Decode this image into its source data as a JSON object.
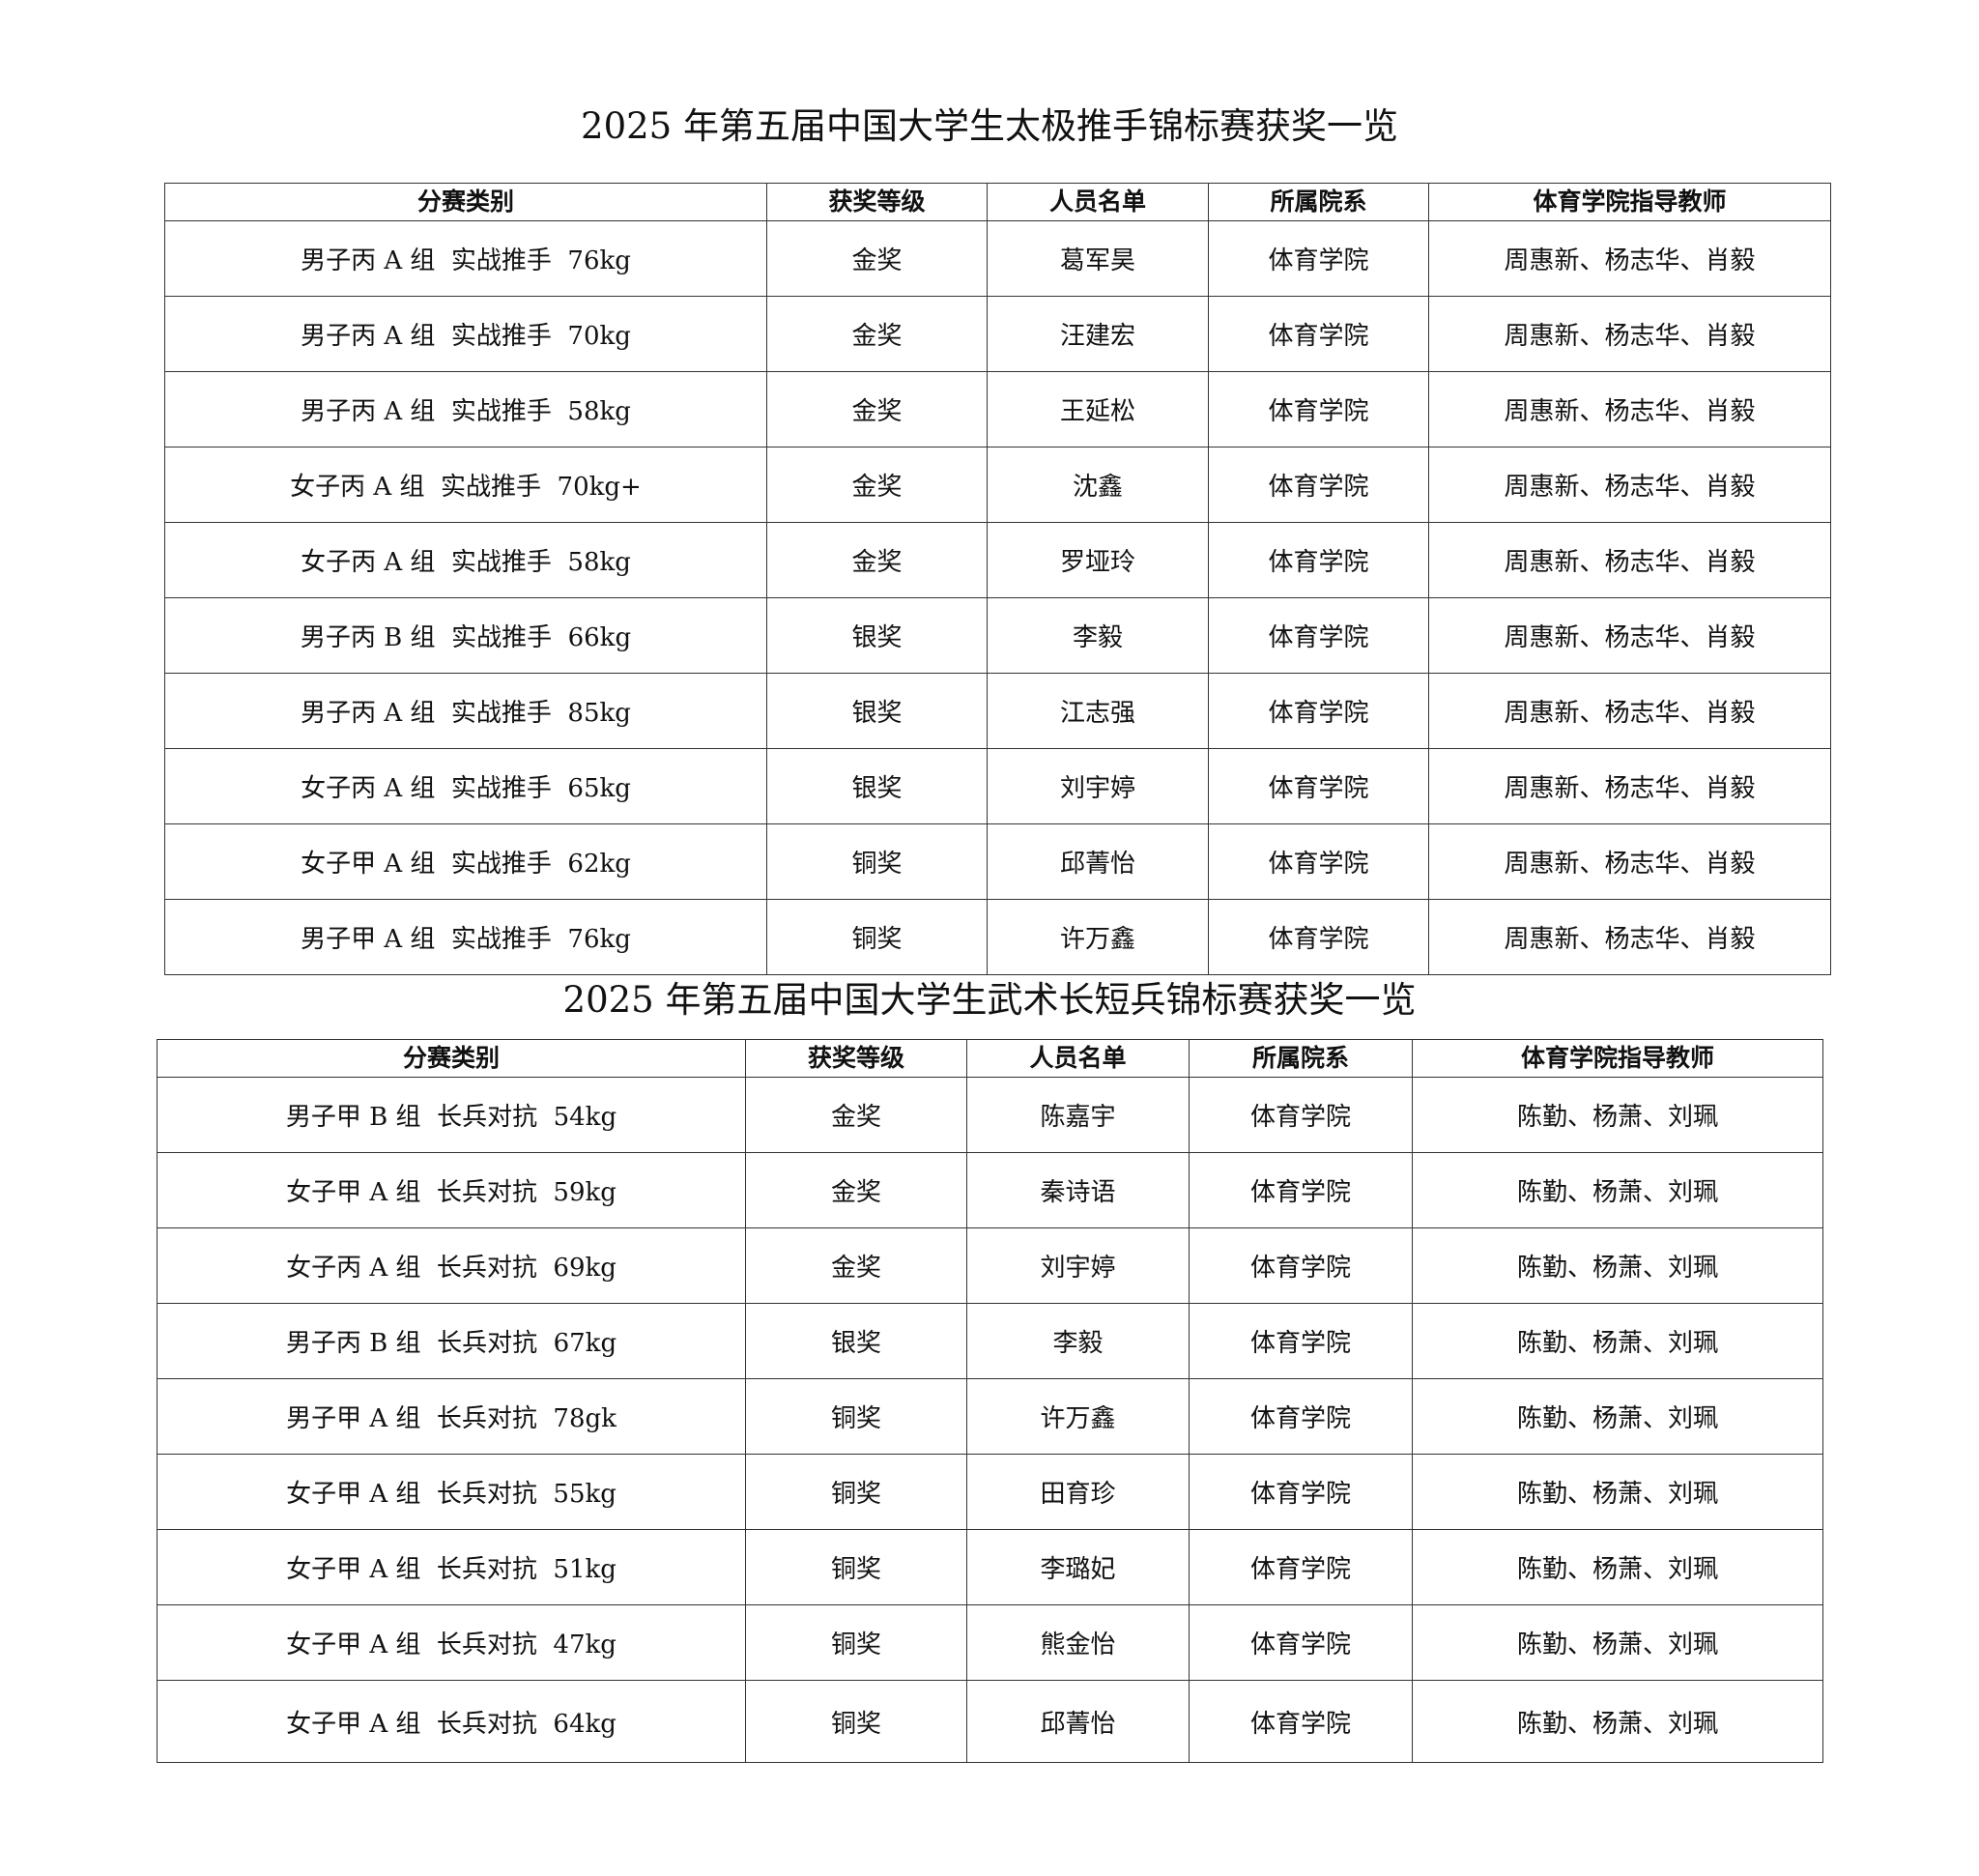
{
  "tables": [
    {
      "title": "2025 年第五届中国大学生太极推手锦标赛获奖一览",
      "headers": [
        "分赛类别",
        "获奖等级",
        "人员名单",
        "所属院系",
        "体育学院指导教师"
      ],
      "rows": [
        [
          "男子丙 A 组  实战推手  76kg",
          "金奖",
          "葛军昊",
          "体育学院",
          "周惠新、杨志华、肖毅"
        ],
        [
          "男子丙 A 组  实战推手  70kg",
          "金奖",
          "汪建宏",
          "体育学院",
          "周惠新、杨志华、肖毅"
        ],
        [
          "男子丙 A 组  实战推手  58kg",
          "金奖",
          "王延松",
          "体育学院",
          "周惠新、杨志华、肖毅"
        ],
        [
          "女子丙 A 组  实战推手  70kg+",
          "金奖",
          "沈鑫",
          "体育学院",
          "周惠新、杨志华、肖毅"
        ],
        [
          "女子丙 A 组  实战推手  58kg",
          "金奖",
          "罗垭玲",
          "体育学院",
          "周惠新、杨志华、肖毅"
        ],
        [
          "男子丙 B 组  实战推手  66kg",
          "银奖",
          "李毅",
          "体育学院",
          "周惠新、杨志华、肖毅"
        ],
        [
          "男子丙 A 组  实战推手  85kg",
          "银奖",
          "江志强",
          "体育学院",
          "周惠新、杨志华、肖毅"
        ],
        [
          "女子丙 A 组  实战推手  65kg",
          "银奖",
          "刘宇婷",
          "体育学院",
          "周惠新、杨志华、肖毅"
        ],
        [
          "女子甲 A 组  实战推手  62kg",
          "铜奖",
          "邱菁怡",
          "体育学院",
          "周惠新、杨志华、肖毅"
        ],
        [
          "男子甲 A 组  实战推手  76kg",
          "铜奖",
          "许万鑫",
          "体育学院",
          "周惠新、杨志华、肖毅"
        ]
      ]
    },
    {
      "title": "2025 年第五届中国大学生武术长短兵锦标赛获奖一览",
      "headers": [
        "分赛类别",
        "获奖等级",
        "人员名单",
        "所属院系",
        "体育学院指导教师"
      ],
      "rows": [
        [
          "男子甲 B 组  长兵对抗  54kg",
          "金奖",
          "陈嘉宇",
          "体育学院",
          "陈勤、杨萧、刘珮"
        ],
        [
          "女子甲 A 组  长兵对抗  59kg",
          "金奖",
          "秦诗语",
          "体育学院",
          "陈勤、杨萧、刘珮"
        ],
        [
          "女子丙 A 组  长兵对抗  69kg",
          "金奖",
          "刘宇婷",
          "体育学院",
          "陈勤、杨萧、刘珮"
        ],
        [
          "男子丙 B 组  长兵对抗  67kg",
          "银奖",
          "李毅",
          "体育学院",
          "陈勤、杨萧、刘珮"
        ],
        [
          "男子甲 A 组  长兵对抗  78gk",
          "铜奖",
          "许万鑫",
          "体育学院",
          "陈勤、杨萧、刘珮"
        ],
        [
          "女子甲 A 组  长兵对抗  55kg",
          "铜奖",
          "田育珍",
          "体育学院",
          "陈勤、杨萧、刘珮"
        ],
        [
          "女子甲 A 组  长兵对抗  51kg",
          "铜奖",
          "李璐妃",
          "体育学院",
          "陈勤、杨萧、刘珮"
        ],
        [
          "女子甲 A 组  长兵对抗  47kg",
          "铜奖",
          "熊金怡",
          "体育学院",
          "陈勤、杨萧、刘珮"
        ],
        [
          "女子甲 A 组  长兵对抗  64kg",
          "铜奖",
          "邱菁怡",
          "体育学院",
          "陈勤、杨萧、刘珮"
        ]
      ]
    }
  ]
}
